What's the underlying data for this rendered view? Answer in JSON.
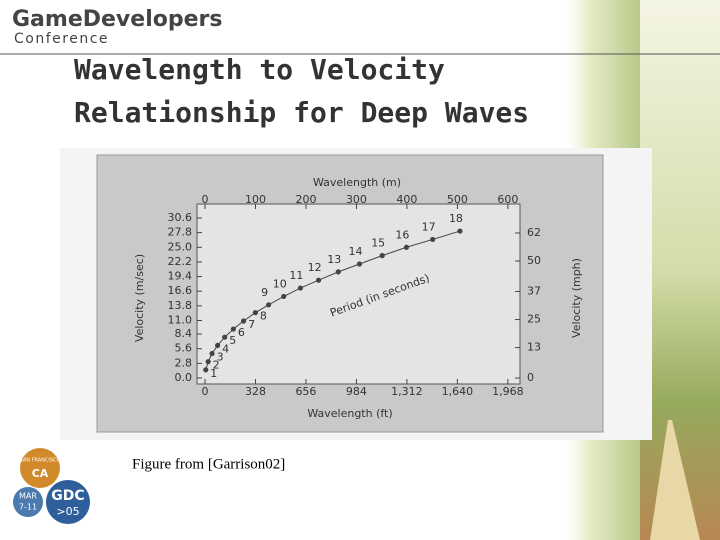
{
  "header": {
    "logo_main": "GameDevelopers",
    "logo_sub": "Conference"
  },
  "slide": {
    "title_line1": "Wavelength to Velocity",
    "title_line2": "Relationship for Deep Waves",
    "caption": "Figure from [Garrison02]"
  },
  "badge": {
    "city": "SAN FRANCISCO",
    "state": "CA",
    "date_month": "MAR",
    "date_days": "7-11",
    "event": "GDC",
    "year": ">05"
  },
  "chart_data": {
    "type": "scatter",
    "xlabel": "Wavelength (m)",
    "x2label": "Wavelength (ft)",
    "ylabel": "Velocity (m/sec)",
    "y2label": "Velocity (mph)",
    "annotation": "Period (in seconds)",
    "xlim": [
      0,
      620
    ],
    "xticks": [
      0,
      100,
      200,
      300,
      400,
      500,
      600
    ],
    "x2lim": [
      0,
      2034
    ],
    "x2ticks": [
      0,
      328,
      656,
      984,
      {
        "value": 1312,
        "label": "1,312"
      },
      {
        "value": 1640,
        "label": "1,640"
      },
      {
        "value": 1968,
        "label": "1,968"
      }
    ],
    "ylim": [
      0,
      30.6
    ],
    "yticks": [
      {
        "value": 0,
        "label": "0.0"
      },
      2.8,
      5.6,
      8.4,
      {
        "value": 11,
        "label": "11.0"
      },
      13.8,
      16.6,
      19.4,
      22.2,
      {
        "value": 25,
        "label": "25.0"
      },
      27.8,
      30.6
    ],
    "y2lim": [
      0,
      68.4
    ],
    "y2ticks": [
      0,
      13,
      25,
      37,
      50,
      62
    ],
    "grid": false,
    "series": [
      {
        "color": "#444444",
        "x": [
          1.56,
          6.24,
          14.0,
          25.0,
          39.0,
          56.2,
          76.4,
          99.8,
          126,
          156,
          189,
          225,
          264,
          306,
          351,
          399,
          451,
          505
        ],
        "values": [
          1.56,
          3.12,
          4.68,
          6.24,
          7.8,
          9.36,
          10.9,
          12.5,
          14.0,
          15.6,
          17.2,
          18.7,
          20.3,
          21.8,
          23.4,
          25.0,
          26.5,
          28.1
        ],
        "point_labels": [
          1,
          2,
          3,
          4,
          5,
          6,
          7,
          8,
          9,
          10,
          11,
          12,
          13,
          14,
          15,
          16,
          17,
          18
        ]
      }
    ]
  }
}
